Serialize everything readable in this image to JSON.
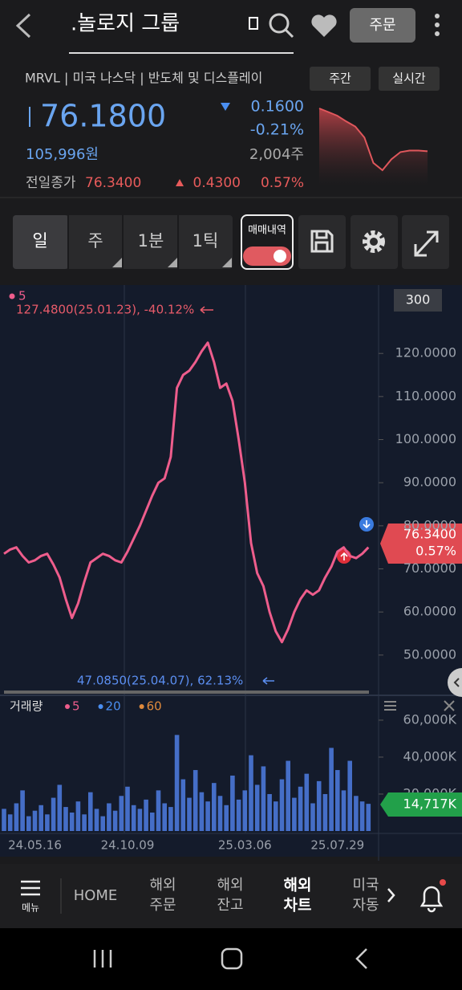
{
  "header": {
    "title": ".놀로지 그룹",
    "order_button": "주문"
  },
  "quote": {
    "symbol_line": "MRVL | 미국 나스닥 | 반도체 및 디스플레이",
    "buttons": [
      "주간",
      "실시간"
    ],
    "price": "76.1800",
    "change": "0.1600",
    "change_pct": "-0.21%",
    "krw": "105,996원",
    "volume": "2,004주",
    "prev_close_label": "전일종가",
    "prev_close": "76.3400",
    "prev_change": "0.4300",
    "prev_change_pct": "0.57%"
  },
  "tabs": [
    "일",
    "주",
    "1분",
    "1틱"
  ],
  "trade_toggle": "매매내역",
  "chart_data": [
    {
      "type": "area",
      "color": "#e0575c",
      "values": [
        76.8,
        76.75,
        76.7,
        76.62,
        76.55,
        76.4,
        76.05,
        75.95,
        76.1,
        76.2,
        76.22,
        76.22,
        76.21
      ]
    },
    {
      "type": "line",
      "period": "300",
      "series": [
        {
          "name": "5",
          "color": "#ee5d8c",
          "values": [
            73.5,
            74.5,
            75,
            73,
            71.5,
            72,
            73,
            73.5,
            71,
            68,
            63,
            58.6,
            62,
            67,
            71.5,
            72.5,
            73.5,
            73,
            72,
            71.5,
            74,
            77,
            80,
            83.5,
            87,
            90,
            91,
            96,
            112,
            115,
            116,
            118,
            120.5,
            122.5,
            118,
            112,
            113,
            109,
            100,
            90,
            76,
            69,
            66,
            60,
            55.5,
            53,
            56,
            60,
            63,
            65,
            64,
            65,
            68,
            70.5,
            74,
            75,
            73,
            72.5,
            73.5,
            75
          ]
        }
      ],
      "ylim": [
        41.4,
        135.5
      ],
      "yticks": [
        {
          "value": 50,
          "label": "50.0000"
        },
        {
          "value": 60,
          "label": "60.0000"
        },
        {
          "value": 70,
          "label": "70.0000"
        },
        {
          "value": 80,
          "label": "80.0000"
        },
        {
          "value": 90,
          "label": "90.0000"
        },
        {
          "value": 100,
          "label": "100.0000"
        },
        {
          "value": 110,
          "label": "110.0000"
        },
        {
          "value": 120,
          "label": "120.0000"
        }
      ],
      "annotations": [
        "127.4800(25.01.23), -40.12%",
        "47.0850(25.04.07), 62.13%"
      ],
      "last_label": [
        "76.3400",
        "0.57%"
      ]
    },
    {
      "type": "bar",
      "title": "거래량",
      "color": "#4a78d8",
      "categories": [
        null,
        null,
        null,
        null,
        null,
        "24.05.16",
        null,
        null,
        null,
        null,
        null,
        null,
        null,
        null,
        null,
        null,
        null,
        null,
        null,
        null,
        "24.10.09",
        null,
        null,
        null,
        null,
        null,
        null,
        null,
        null,
        null,
        null,
        null,
        null,
        null,
        null,
        null,
        null,
        null,
        null,
        "25.03.06",
        null,
        null,
        null,
        null,
        null,
        null,
        null,
        null,
        null,
        null,
        null,
        null,
        null,
        null,
        "25.07.29",
        null,
        null,
        null,
        null,
        null
      ],
      "values": [
        12000,
        9000,
        15000,
        22000,
        8000,
        11000,
        14000,
        9000,
        18000,
        25000,
        13000,
        10000,
        16000,
        9000,
        21000,
        12000,
        8000,
        15000,
        11000,
        19000,
        24000,
        14000,
        12000,
        17000,
        10000,
        22000,
        15000,
        13000,
        52000,
        28000,
        18000,
        33000,
        21000,
        16000,
        26000,
        19000,
        14000,
        30000,
        17000,
        22000,
        41000,
        25000,
        35000,
        20000,
        16000,
        28000,
        38000,
        18000,
        24000,
        31000,
        15000,
        27000,
        20000,
        45000,
        33000,
        22000,
        38000,
        19000,
        16000,
        14717
      ],
      "ylim": [
        0,
        71700
      ],
      "yticks": [
        {
          "value": 20000,
          "label": "20,000K"
        },
        {
          "value": 40000,
          "label": "40,000K"
        },
        {
          "value": 60000,
          "label": "60,000K"
        }
      ],
      "legend": [
        {
          "name": "5",
          "color": "#ee5d8c"
        },
        {
          "name": "20",
          "color": "#4a8ef0"
        },
        {
          "name": "60",
          "color": "#e08a3c"
        }
      ],
      "last_label": "14,717K"
    }
  ],
  "nav": {
    "menu": "메뉴",
    "active": 3,
    "items": [
      [
        "HOME"
      ],
      [
        "해외",
        "주문"
      ],
      [
        "해외",
        "잔고"
      ],
      [
        "해외",
        "차트"
      ],
      [
        "미국",
        "자동"
      ]
    ]
  }
}
